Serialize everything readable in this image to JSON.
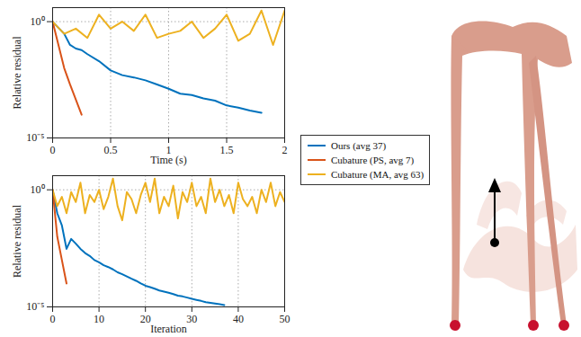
{
  "chart_data": [
    {
      "type": "line",
      "xlabel": "Time (s)",
      "ylabel": "Relative residual",
      "log": "y",
      "grid": true,
      "xlim": [
        0,
        2
      ],
      "xticks": [
        0,
        0.5,
        1,
        1.5,
        2
      ],
      "ylim": [
        1e-05,
        4
      ],
      "yticks": [
        {
          "value": 1e-05,
          "label": "10⁻⁵"
        },
        {
          "value": 1,
          "label": "10⁰"
        }
      ],
      "series": [
        {
          "color": "#0072BD",
          "x": [
            0,
            0.1,
            0.15,
            0.2,
            0.25,
            0.3,
            0.4,
            0.5,
            0.6,
            0.7,
            0.8,
            0.9,
            1.0,
            1.1,
            1.2,
            1.3,
            1.4,
            1.5,
            1.6,
            1.7,
            1.8
          ],
          "values": [
            1,
            0.3,
            0.1,
            0.07,
            0.06,
            0.04,
            0.02,
            0.008,
            0.005,
            0.004,
            0.003,
            0.002,
            0.0013,
            0.0008,
            0.0007,
            0.0005,
            0.0004,
            0.00025,
            0.0002,
            0.00015,
            0.00012
          ]
        },
        {
          "color": "#D95319",
          "x": [
            0,
            0.1,
            0.15,
            0.25
          ],
          "values": [
            1,
            0.01,
            0.002,
            0.0001
          ]
        },
        {
          "color": "#EDB120",
          "x": [
            0,
            0.1,
            0.2,
            0.3,
            0.4,
            0.5,
            0.6,
            0.7,
            0.8,
            0.9,
            1.0,
            1.1,
            1.2,
            1.3,
            1.4,
            1.5,
            1.6,
            1.7,
            1.8,
            1.9,
            2.0
          ],
          "values": [
            1,
            0.3,
            0.5,
            0.2,
            2,
            0.5,
            1,
            0.4,
            2,
            0.2,
            0.3,
            0.4,
            1,
            0.2,
            0.5,
            2,
            0.15,
            0.3,
            3,
            0.1,
            3
          ]
        }
      ]
    },
    {
      "type": "line",
      "xlabel": "Iteration",
      "ylabel": "Relative residual",
      "log": "y",
      "grid": true,
      "legend": "right",
      "xlim": [
        0,
        50
      ],
      "xticks": [
        0,
        10,
        20,
        30,
        40,
        50
      ],
      "ylim": [
        1e-05,
        4
      ],
      "yticks": [
        {
          "value": 1e-05,
          "label": "10⁻⁵"
        },
        {
          "value": 1,
          "label": "10⁰"
        }
      ],
      "series": [
        {
          "name": "Ours (avg 37)",
          "color": "#0072BD",
          "x": [
            0,
            1,
            2,
            3,
            4,
            5,
            6,
            7,
            8,
            9,
            10,
            11,
            12,
            13,
            14,
            15,
            16,
            17,
            18,
            19,
            20,
            21,
            22,
            23,
            24,
            25,
            26,
            27,
            28,
            29,
            30,
            31,
            32,
            33,
            34,
            35,
            36,
            37
          ],
          "values": [
            1,
            0.1,
            0.03,
            0.003,
            0.008,
            0.005,
            0.003,
            0.002,
            0.0015,
            0.001,
            0.0008,
            0.0006,
            0.0005,
            0.0004,
            0.0003,
            0.00025,
            0.0002,
            0.00016,
            0.00013,
            0.0001,
            8e-05,
            7e-05,
            6e-05,
            5e-05,
            4.5e-05,
            4e-05,
            3.5e-05,
            3e-05,
            2.8e-05,
            2.5e-05,
            2.2e-05,
            2e-05,
            1.8e-05,
            1.6e-05,
            1.5e-05,
            1.4e-05,
            1.3e-05,
            1.2e-05
          ]
        },
        {
          "name": "Cubature (PS, avg 7)",
          "color": "#D95319",
          "x": [
            0,
            1,
            2,
            3
          ],
          "values": [
            1,
            0.01,
            0.001,
            0.0001
          ]
        },
        {
          "name": "Cubature (MA, avg 63)",
          "color": "#EDB120",
          "x": [
            0,
            1,
            2,
            3,
            4,
            5,
            6,
            7,
            8,
            9,
            10,
            11,
            12,
            13,
            14,
            15,
            16,
            17,
            18,
            19,
            20,
            21,
            22,
            23,
            24,
            25,
            26,
            27,
            28,
            29,
            30,
            31,
            32,
            33,
            34,
            35,
            36,
            37,
            38,
            39,
            40,
            41,
            42,
            43,
            44,
            45,
            46,
            47,
            48,
            49,
            50
          ],
          "values": [
            1,
            0.2,
            0.5,
            0.1,
            0.8,
            0.3,
            2,
            0.1,
            0.6,
            0.3,
            1,
            0.15,
            0.5,
            3,
            0.2,
            0.05,
            0.8,
            0.4,
            0.1,
            0.6,
            2,
            0.3,
            3,
            0.1,
            0.5,
            0.2,
            1.5,
            0.06,
            0.8,
            0.3,
            2,
            0.2,
            0.5,
            0.1,
            3,
            0.3,
            1,
            0.2,
            0.6,
            0.1,
            2,
            0.4,
            0.2,
            0.5,
            0.1,
            1,
            0.3,
            2,
            0.2,
            0.8,
            0.3
          ]
        }
      ]
    }
  ]
}
